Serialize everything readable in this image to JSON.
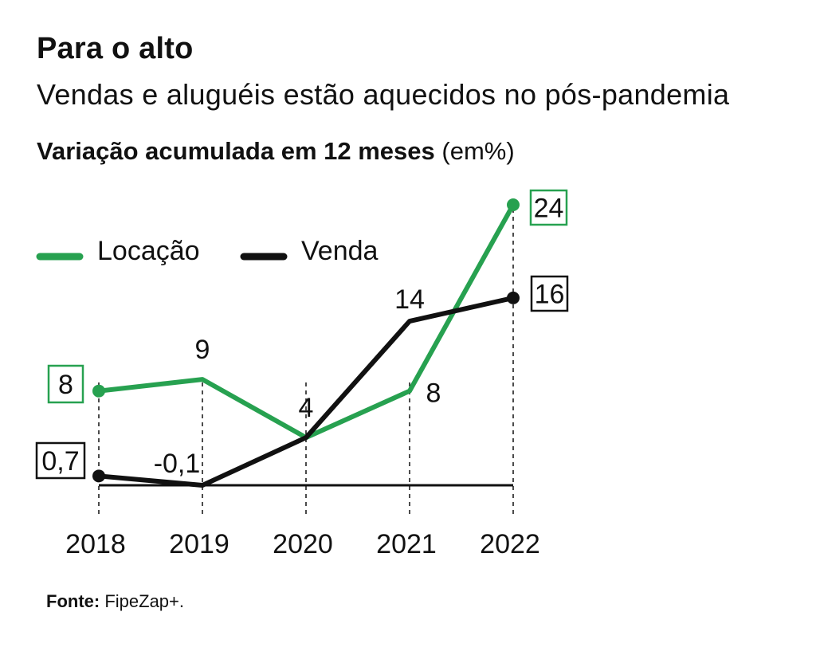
{
  "header": {
    "title": "Para o alto",
    "subtitle": "Vendas e aluguéis estão aquecidos no pós-pandemia"
  },
  "chart_heading": {
    "bold": "Variação acumulada em 12 meses",
    "unit": "(em%)"
  },
  "source": {
    "label": "Fonte:",
    "text": "FipeZap+."
  },
  "colors": {
    "locacao": "#27a150",
    "venda": "#111111"
  },
  "chart_data": {
    "type": "line",
    "title": "Variação acumulada em 12 meses",
    "x": [
      "2018",
      "2019",
      "2020",
      "2021",
      "2022"
    ],
    "series": [
      {
        "name": "Locação",
        "values": [
          8,
          9,
          4,
          8,
          24
        ],
        "labels": [
          "8",
          "9",
          "4",
          "8",
          "24"
        ]
      },
      {
        "name": "Venda",
        "values": [
          0.7,
          -0.1,
          4,
          14,
          16
        ],
        "labels": [
          "0,7",
          "-0,1",
          "4",
          "14",
          "16"
        ]
      }
    ],
    "ylim": [
      -0.1,
      24
    ],
    "legend": "top-left",
    "grid": false
  }
}
